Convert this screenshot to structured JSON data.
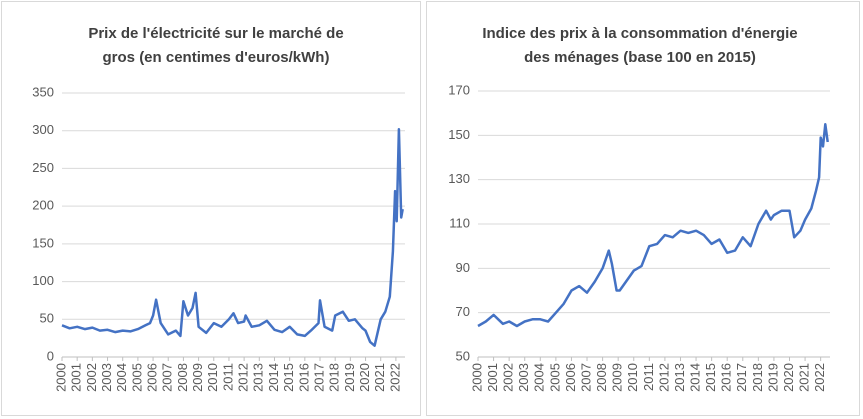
{
  "chart_data": [
    {
      "type": "line",
      "title": "Prix de l'électricité sur le marché de gros (en centimes d'euros/kWh)",
      "series": [
        {
          "color": "#4472c4",
          "x": [
            2000,
            2000.5,
            2001,
            2001.5,
            2002,
            2002.5,
            2003,
            2003.5,
            2004,
            2004.5,
            2005,
            2005.5,
            2005.8,
            2006,
            2006.2,
            2006.5,
            2007,
            2007.5,
            2007.8,
            2008,
            2008.3,
            2008.6,
            2008.8,
            2009,
            2009.5,
            2010,
            2010.5,
            2011,
            2011.3,
            2011.6,
            2012,
            2012.1,
            2012.5,
            2013,
            2013.5,
            2014,
            2014.5,
            2015,
            2015.5,
            2016,
            2016.4,
            2016.9,
            2017,
            2017.3,
            2017.8,
            2018,
            2018.5,
            2018.9,
            2019.3,
            2019.8,
            2020,
            2020.3,
            2020.6,
            2021,
            2021.3,
            2021.6,
            2021.8,
            2021.95,
            2022.05,
            2022.2,
            2022.35,
            2022.45
          ],
          "values": [
            42,
            38,
            40,
            37,
            39,
            35,
            36,
            33,
            35,
            34,
            37,
            42,
            45,
            55,
            76,
            45,
            30,
            35,
            28,
            74,
            55,
            65,
            85,
            40,
            32,
            45,
            40,
            50,
            58,
            45,
            47,
            55,
            40,
            42,
            48,
            36,
            33,
            40,
            30,
            28,
            35,
            45,
            75,
            40,
            35,
            55,
            60,
            48,
            50,
            38,
            35,
            20,
            15,
            50,
            60,
            80,
            140,
            220,
            180,
            302,
            185,
            196
          ]
        }
      ],
      "xlim": [
        2000,
        2022.6
      ],
      "ylim": [
        0,
        350
      ],
      "xticks": [
        2000,
        2001,
        2002,
        2003,
        2004,
        2005,
        2006,
        2007,
        2008,
        2009,
        2010,
        2011,
        2012,
        2013,
        2014,
        2015,
        2016,
        2017,
        2018,
        2019,
        2020,
        2021,
        2022
      ],
      "yticks": [
        0,
        50,
        100,
        150,
        200,
        250,
        300,
        350
      ],
      "grid": true
    },
    {
      "type": "line",
      "title": "Indice des prix à la consommation d'énergie des ménages (base 100 en 2015)",
      "series": [
        {
          "color": "#4472c4",
          "x": [
            2000,
            2000.5,
            2001,
            2001.3,
            2001.6,
            2002,
            2002.5,
            2003,
            2003.5,
            2004,
            2004.5,
            2005,
            2005.5,
            2006,
            2006.5,
            2007,
            2007.5,
            2008,
            2008.4,
            2008.6,
            2008.9,
            2009.1,
            2009.5,
            2010,
            2010.5,
            2011,
            2011.5,
            2012,
            2012.5,
            2013,
            2013.5,
            2014,
            2014.5,
            2015,
            2015.5,
            2016,
            2016.5,
            2017,
            2017.5,
            2018,
            2018.5,
            2018.8,
            2019,
            2019.5,
            2020,
            2020.3,
            2020.7,
            2021,
            2021.4,
            2021.7,
            2021.9,
            2022,
            2022.15,
            2022.3,
            2022.45
          ],
          "values": [
            64,
            66,
            69,
            67,
            65,
            66,
            64,
            66,
            67,
            67,
            66,
            70,
            74,
            80,
            82,
            79,
            84,
            90,
            98,
            92,
            80,
            80,
            84,
            89,
            91,
            100,
            101,
            105,
            104,
            107,
            106,
            107,
            105,
            101,
            103,
            97,
            98,
            104,
            100,
            110,
            116,
            112,
            114,
            116,
            116,
            104,
            107,
            112,
            117,
            125,
            131,
            149,
            145,
            155,
            147
          ]
        }
      ],
      "xlim": [
        2000,
        2022.6
      ],
      "ylim": [
        50,
        170
      ],
      "xticks": [
        2000,
        2001,
        2002,
        2003,
        2004,
        2005,
        2006,
        2007,
        2008,
        2009,
        2010,
        2011,
        2012,
        2013,
        2014,
        2015,
        2016,
        2017,
        2018,
        2019,
        2020,
        2021,
        2022
      ],
      "yticks": [
        50,
        70,
        90,
        110,
        130,
        150,
        170
      ],
      "grid": true
    }
  ]
}
